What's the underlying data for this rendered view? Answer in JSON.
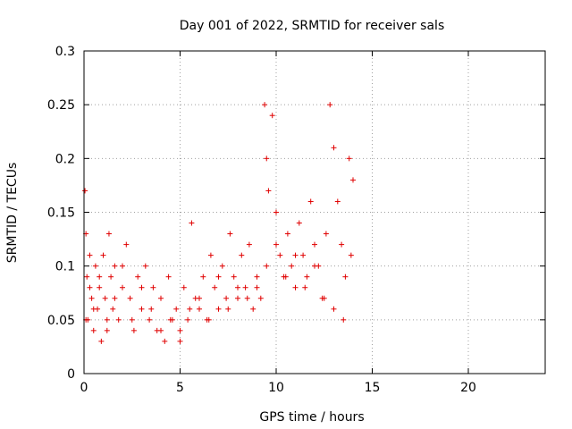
{
  "chart_data": {
    "type": "scatter",
    "title": "Day 001 of 2022, SRMTID for receiver sals",
    "xlabel": "GPS time / hours",
    "ylabel": "SRMTID / TECUs",
    "xlim": [
      0,
      24
    ],
    "ylim": [
      0,
      0.3
    ],
    "xticks": [
      0,
      5,
      10,
      15,
      20
    ],
    "xtick_labels": [
      "0",
      "5",
      "10",
      "15",
      "20"
    ],
    "yticks": [
      0,
      0.05,
      0.1,
      0.15,
      0.2,
      0.25,
      0.3
    ],
    "ytick_labels": [
      "0",
      "0.05",
      "0.1",
      "0.15",
      "0.2",
      "0.25",
      "0.3"
    ],
    "grid": true,
    "marker": "+",
    "marker_color": "#e00000",
    "series": [
      {
        "name": "SRMTID",
        "x": [
          0.05,
          0.1,
          0.15,
          0.2,
          0.3,
          0.4,
          0.5,
          0.6,
          0.7,
          0.8,
          0.9,
          1.0,
          1.1,
          1.2,
          1.3,
          1.4,
          1.5,
          1.6,
          1.8,
          2.0,
          2.2,
          2.4,
          2.6,
          2.8,
          3.0,
          3.2,
          3.4,
          3.6,
          3.8,
          4.0,
          4.2,
          4.4,
          4.6,
          4.8,
          5.0,
          5.2,
          5.4,
          5.6,
          5.8,
          6.0,
          6.2,
          6.4,
          6.6,
          6.8,
          7.0,
          7.2,
          7.4,
          7.6,
          7.8,
          8.0,
          8.2,
          8.4,
          8.6,
          8.8,
          9.0,
          9.2,
          9.4,
          9.5,
          9.6,
          9.8,
          10.0,
          10.2,
          10.4,
          10.6,
          10.8,
          11.0,
          11.2,
          11.4,
          11.6,
          11.8,
          12.0,
          12.2,
          12.4,
          12.6,
          12.8,
          13.0,
          13.2,
          13.4,
          13.6,
          13.8,
          14.0,
          0.1,
          0.3,
          0.5,
          0.8,
          1.2,
          1.6,
          2.0,
          2.5,
          3.0,
          3.5,
          4.0,
          4.5,
          5.0,
          5.5,
          6.0,
          6.5,
          7.0,
          7.5,
          8.0,
          8.5,
          9.0,
          9.5,
          10.0,
          10.5,
          11.0,
          11.5,
          12.0,
          12.5,
          13.0,
          13.5,
          13.9
        ],
        "y": [
          0.17,
          0.13,
          0.09,
          0.05,
          0.11,
          0.07,
          0.04,
          0.1,
          0.06,
          0.08,
          0.03,
          0.11,
          0.07,
          0.05,
          0.13,
          0.09,
          0.06,
          0.1,
          0.05,
          0.08,
          0.12,
          0.07,
          0.04,
          0.09,
          0.06,
          0.1,
          0.05,
          0.08,
          0.04,
          0.07,
          0.03,
          0.09,
          0.05,
          0.06,
          0.04,
          0.08,
          0.05,
          0.14,
          0.07,
          0.06,
          0.09,
          0.05,
          0.11,
          0.08,
          0.06,
          0.1,
          0.07,
          0.13,
          0.09,
          0.07,
          0.11,
          0.08,
          0.12,
          0.06,
          0.09,
          0.07,
          0.25,
          0.2,
          0.17,
          0.24,
          0.15,
          0.11,
          0.09,
          0.13,
          0.1,
          0.08,
          0.14,
          0.11,
          0.09,
          0.16,
          0.12,
          0.1,
          0.07,
          0.13,
          0.25,
          0.21,
          0.16,
          0.12,
          0.09,
          0.2,
          0.18,
          0.05,
          0.08,
          0.06,
          0.09,
          0.04,
          0.07,
          0.1,
          0.05,
          0.08,
          0.06,
          0.04,
          0.05,
          0.03,
          0.06,
          0.07,
          0.05,
          0.09,
          0.06,
          0.08,
          0.07,
          0.08,
          0.1,
          0.12,
          0.09,
          0.11,
          0.08,
          0.1,
          0.07,
          0.06,
          0.05,
          0.11
        ]
      }
    ]
  }
}
